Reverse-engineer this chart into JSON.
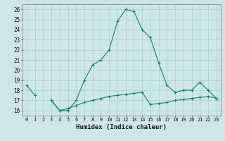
{
  "xlabel": "Humidex (Indice chaleur)",
  "x": [
    0,
    1,
    2,
    3,
    4,
    5,
    6,
    7,
    8,
    9,
    10,
    11,
    12,
    13,
    14,
    15,
    16,
    17,
    18,
    19,
    20,
    21,
    22,
    23
  ],
  "line1": [
    18.5,
    17.5,
    null,
    17.0,
    16.0,
    16.0,
    17.0,
    19.0,
    20.5,
    21.0,
    22.0,
    24.8,
    26.0,
    25.8,
    24.0,
    23.2,
    20.7,
    18.5,
    17.8,
    18.0,
    18.0,
    18.8,
    18.0,
    17.2
  ],
  "line2": [
    null,
    null,
    null,
    17.0,
    16.0,
    16.2,
    16.5,
    16.8,
    17.0,
    17.2,
    17.4,
    17.5,
    17.6,
    17.7,
    17.8,
    16.6,
    16.7,
    16.8,
    17.0,
    17.1,
    17.2,
    17.3,
    17.4,
    17.2
  ],
  "color": "#1a7a6e",
  "bg_color": "#cce8e6",
  "grid_color": "#aacfcc",
  "ylim": [
    15.5,
    26.5
  ],
  "yticks": [
    16,
    17,
    18,
    19,
    20,
    21,
    22,
    23,
    24,
    25,
    26
  ],
  "marker": "+"
}
